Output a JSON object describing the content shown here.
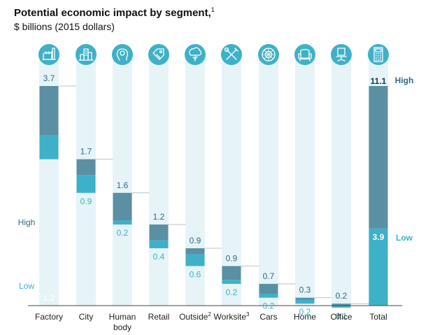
{
  "chart_data": {
    "type": "waterfall",
    "title": "Potential economic impact by segment,",
    "title_footnote": "1",
    "subtitle": "$ billions (2015 dollars)",
    "ymax": 11.1,
    "categories": [
      {
        "label": "Factory",
        "high": 3.7,
        "low": 1.2,
        "icon": "factory-icon"
      },
      {
        "label": "City",
        "high": 1.7,
        "low": 0.9,
        "icon": "city-icon"
      },
      {
        "label": "Human body",
        "label_lines": [
          "Human",
          "body"
        ],
        "high": 1.6,
        "low": 0.2,
        "icon": "human-head-icon"
      },
      {
        "label": "Retail",
        "high": 1.2,
        "low": 0.4,
        "icon": "price-tag-icon"
      },
      {
        "label": "Outside",
        "footnote": "2",
        "high": 0.9,
        "low": 0.6,
        "icon": "tree-icon"
      },
      {
        "label": "Worksite",
        "footnote": "3",
        "high": 0.9,
        "low": 0.2,
        "icon": "tools-icon"
      },
      {
        "label": "Cars",
        "high": 0.7,
        "low": 0.2,
        "icon": "wheel-icon"
      },
      {
        "label": "Home",
        "high": 0.3,
        "low": 0.2,
        "icon": "armchair-icon"
      },
      {
        "label": "Office",
        "high": 0.2,
        "low": 0.1,
        "icon": "office-chair-icon"
      }
    ],
    "total": {
      "label": "Total",
      "high": 11.1,
      "low": 3.9,
      "icon": "calculator-icon"
    },
    "labels": {
      "high": "High",
      "low": "Low"
    },
    "colors": {
      "high_segment": "#5b8fa3",
      "low_segment": "#3eb1c8",
      "column_band": "#e6f4f8",
      "icon_circle": "#3eb1c8",
      "high_text": "#2f6b85",
      "low_text": "#3eb1c8",
      "connector": "#b9c4c9"
    }
  }
}
